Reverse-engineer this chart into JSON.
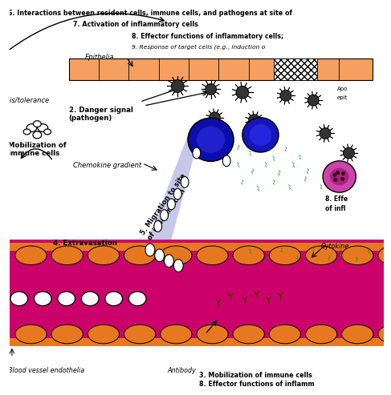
{
  "bg_color": "#ffffff",
  "text_top1": "6. Interactions between resident cells, immune cells, and pathogens at site of",
  "text_top2": "7. Activation of inflammatory cells",
  "text_effector8": "8. Effector functions of inflammatory cells;",
  "text_response9": "9. Response of target cells (e.g., induction o",
  "text_epithelia": "Epithelia",
  "text_apo": "Apo",
  "text_epit": "epit",
  "text_is_tolerance": "-is/tolerance",
  "text_mobilization": "Mobilization of\nimmune cells",
  "text_danger": "2. Danger signal\n(pathogen)",
  "text_chemokine": "Chemokine gradient",
  "text_migration": "5. Migration to site\nof inflammation",
  "text_extravasation": "4. Extravasation",
  "text_blood": "Blood vessel endothelia",
  "text_antibody": "Antibody",
  "text_mobilize3": "3. Mobilization of immune cells",
  "text_effector8b": "8. Effector functions of inflamm",
  "text_effector8c": "8. Effe",
  "text_inflamma": "of infl",
  "text_cytokine": "Cytokine",
  "light_orange": "#F5A060",
  "darker_orange": "#E87820",
  "magenta_color": "#CC006B",
  "blue_dark": "#1010BB",
  "blue_mid": "#2525CC",
  "purple_cell": "#CC44AA",
  "green_color": "#009900",
  "gray_dark": "#333333"
}
